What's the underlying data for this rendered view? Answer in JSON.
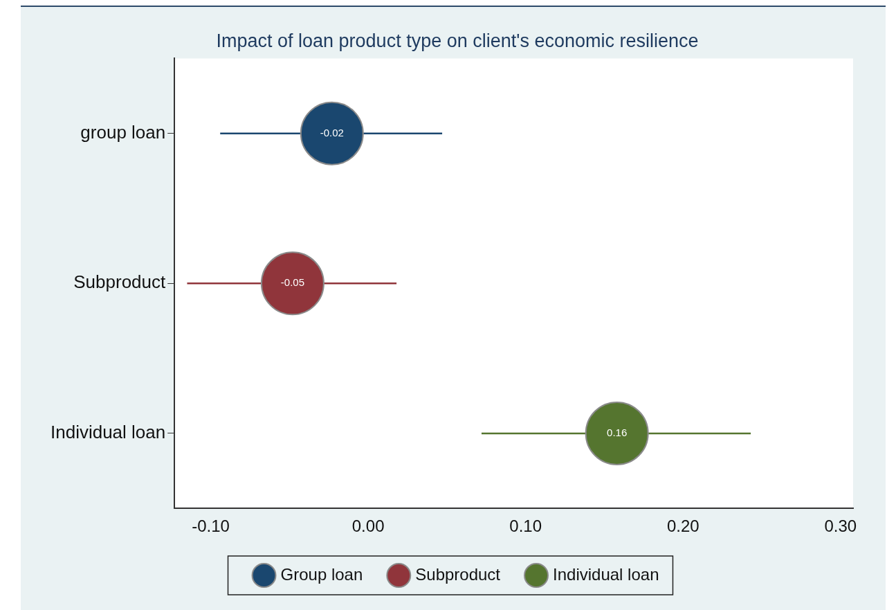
{
  "chart_data": {
    "type": "scatter",
    "title": "Impact of loan product type on client's economic resilience",
    "orientation": "horizontal",
    "categories": [
      "group loan",
      "Subproduct",
      "Individual loan"
    ],
    "xlim": [
      -0.123,
      0.308
    ],
    "xticks": [
      {
        "value": -0.1,
        "label": "-0.10"
      },
      {
        "value": 0,
        "label": "0.00"
      },
      {
        "value": 0.1,
        "label": "0.10"
      },
      {
        "value": 0.2,
        "label": "0.20"
      },
      {
        "value": 0.3,
        "label": "0.30"
      }
    ],
    "marker": "circle",
    "grid": false,
    "legend": "bottom",
    "series": [
      {
        "name": "Group loan",
        "color": "#1a476f",
        "values": [
          -0.023,
          null,
          null
        ],
        "errors": [
          [
            -0.094,
            0.047
          ],
          null,
          null
        ],
        "value_labels": [
          "-0.02",
          null,
          null
        ]
      },
      {
        "name": "Subproduct",
        "color": "#90353b",
        "values": [
          null,
          -0.048,
          null
        ],
        "errors": [
          null,
          [
            -0.115,
            0.018
          ],
          null
        ],
        "value_labels": [
          null,
          "-0.05",
          null
        ]
      },
      {
        "name": "Individual loan",
        "color": "#55752f",
        "values": [
          null,
          null,
          0.158
        ],
        "errors": [
          null,
          null,
          [
            0.072,
            0.243
          ]
        ],
        "value_labels": [
          null,
          null,
          "0.16"
        ]
      }
    ]
  }
}
